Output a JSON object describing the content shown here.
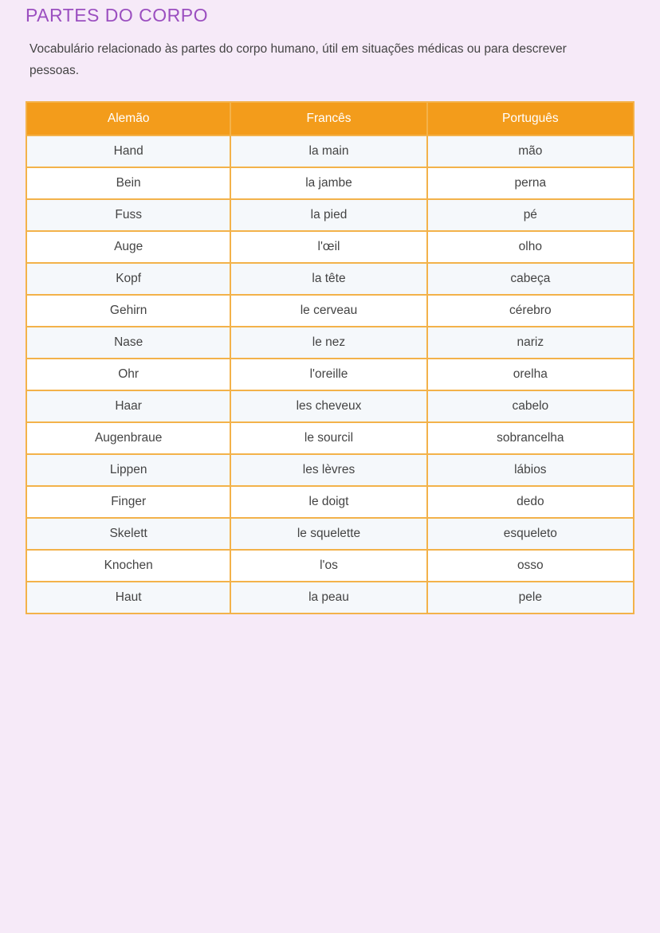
{
  "title": "PARTES DO CORPO",
  "intro": "Vocabulário relacionado às partes do corpo humano, útil em situações médicas ou para descrever pessoas.",
  "colors": {
    "title": "#9b4fc0",
    "header": "#f39c1b",
    "border": "#f3b24a",
    "background": "#f6eaf8"
  },
  "table": {
    "headers": [
      "Alemão",
      "Francês",
      "Português"
    ],
    "rows": [
      [
        "Hand",
        "la main",
        "mão"
      ],
      [
        "Bein",
        "la jambe",
        "perna"
      ],
      [
        "Fuss",
        "la pied",
        "pé"
      ],
      [
        "Auge",
        "l'œil",
        "olho"
      ],
      [
        "Kopf",
        "la tête",
        "cabeça"
      ],
      [
        "Gehirn",
        "le cerveau",
        "cérebro"
      ],
      [
        "Nase",
        "le nez",
        "nariz"
      ],
      [
        "Ohr",
        "l'oreille",
        "orelha"
      ],
      [
        "Haar",
        "les cheveux",
        "cabelo"
      ],
      [
        "Augenbraue",
        "le sourcil",
        "sobrancelha"
      ],
      [
        "Lippen",
        "les lèvres",
        "lábios"
      ],
      [
        "Finger",
        "le doigt",
        "dedo"
      ],
      [
        "Skelett",
        "le squelette",
        "esqueleto"
      ],
      [
        "Knochen",
        "l'os",
        "osso"
      ],
      [
        "Haut",
        "la peau",
        "pele"
      ]
    ]
  }
}
